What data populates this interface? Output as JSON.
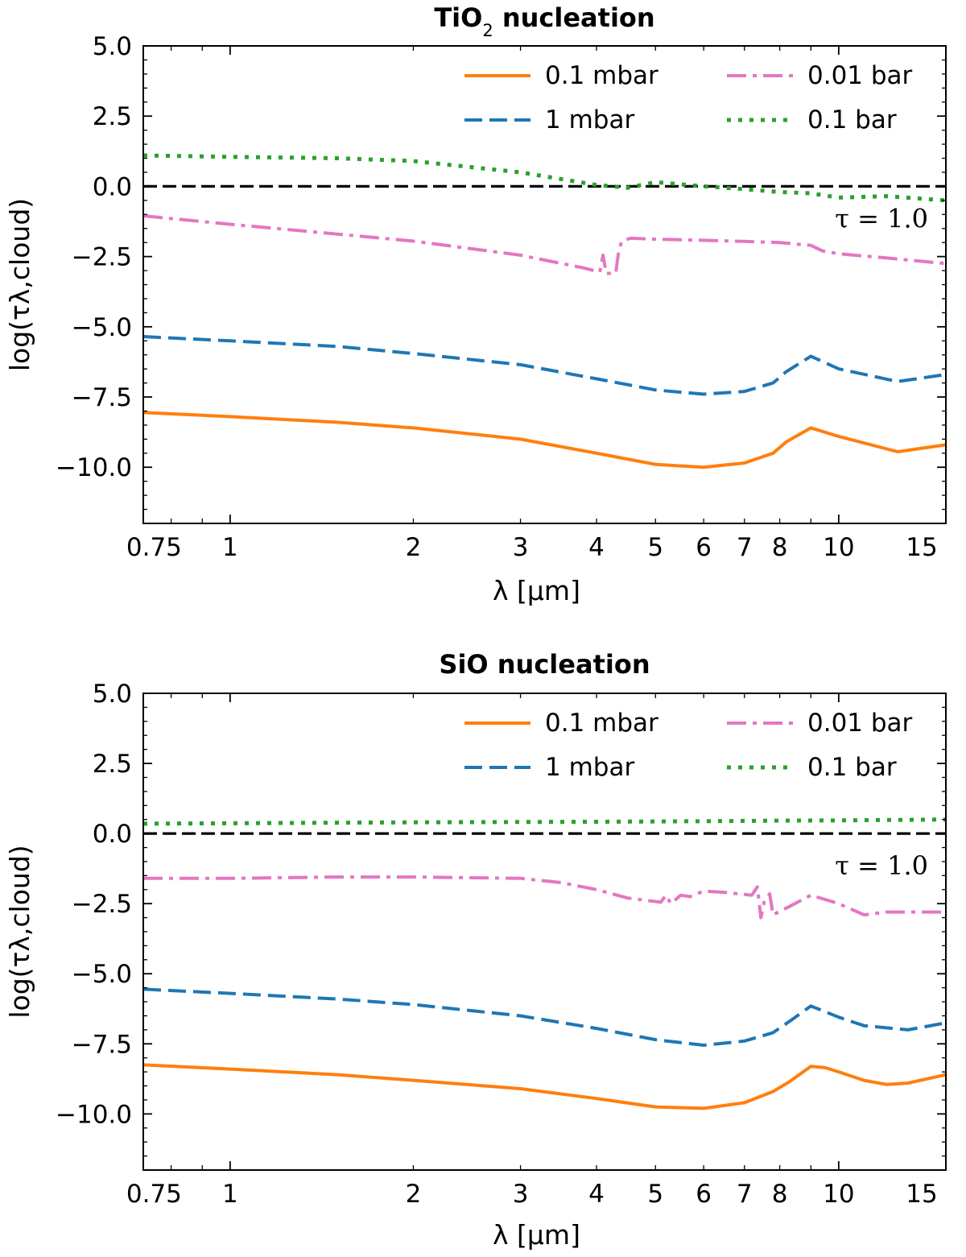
{
  "chart_data": [
    {
      "type": "line",
      "title_main": "TiO",
      "title_sub": "2",
      "title_rest": " nucleation",
      "xlabel": "λ [μm]",
      "ylabel": "log(τλ,cloud)",
      "xscale": "log",
      "xlim": [
        0.72,
        15
      ],
      "ylim": [
        -12,
        5
      ],
      "xticks": [
        0.75,
        1,
        2,
        3,
        4,
        5,
        6,
        7,
        8,
        10,
        15
      ],
      "xtick_labels": [
        "0.75",
        "1",
        "2",
        "3",
        "4",
        "5",
        "6",
        "7",
        "8",
        "10",
        "15"
      ],
      "yticks": [
        5,
        2.5,
        0,
        -2.5,
        -5,
        -7.5,
        -10
      ],
      "ytick_labels": [
        "5.0",
        "2.5",
        "0.0",
        "−2.5",
        "−5.0",
        "−7.5",
        "−10.0"
      ],
      "reference_line": {
        "y": 0,
        "label": "τ = 1.0",
        "color": "#000000"
      },
      "legend_position": "top-right",
      "series": [
        {
          "name": "0.1 mbar",
          "style": "solid",
          "color": "#ff7f0e",
          "x": [
            0.72,
            1,
            1.5,
            2,
            3,
            4,
            5,
            6,
            7,
            7.8,
            8.2,
            9,
            10,
            12.5,
            15
          ],
          "y": [
            -8.05,
            -8.2,
            -8.4,
            -8.6,
            -9.0,
            -9.5,
            -9.9,
            -10.0,
            -9.85,
            -9.5,
            -9.1,
            -8.6,
            -8.9,
            -9.45,
            -9.2
          ]
        },
        {
          "name": "1 mbar",
          "style": "dashed",
          "color": "#1f77b4",
          "x": [
            0.72,
            1,
            1.5,
            2,
            3,
            4,
            5,
            6,
            7,
            7.8,
            8.2,
            9,
            10,
            12.5,
            15
          ],
          "y": [
            -5.35,
            -5.5,
            -5.7,
            -5.95,
            -6.35,
            -6.85,
            -7.25,
            -7.4,
            -7.3,
            -7.0,
            -6.6,
            -6.05,
            -6.5,
            -6.95,
            -6.7
          ]
        },
        {
          "name": "0.01 bar",
          "style": "dashdot",
          "color": "#e377c2",
          "x": [
            0.72,
            1,
            1.5,
            2,
            3,
            3.8,
            4.05,
            4.1,
            4.15,
            4.3,
            4.35,
            4.4,
            4.55,
            5,
            6,
            7,
            8,
            9,
            9.4,
            10,
            12,
            15
          ],
          "y": [
            -1.05,
            -1.35,
            -1.7,
            -1.95,
            -2.45,
            -2.9,
            -3.05,
            -2.45,
            -3.1,
            -3.1,
            -2.3,
            -1.95,
            -1.85,
            -1.88,
            -1.92,
            -1.96,
            -2.0,
            -2.1,
            -2.3,
            -2.4,
            -2.55,
            -2.75
          ]
        },
        {
          "name": "0.1 bar",
          "style": "dotted",
          "color": "#2ca02c",
          "x": [
            0.72,
            1,
            1.5,
            2,
            3,
            4,
            4.5,
            5,
            6,
            7,
            8,
            9,
            10,
            12,
            15
          ],
          "y": [
            1.1,
            1.05,
            1.0,
            0.9,
            0.5,
            0.05,
            -0.05,
            0.15,
            0.0,
            -0.1,
            -0.2,
            -0.25,
            -0.4,
            -0.35,
            -0.5
          ]
        }
      ]
    },
    {
      "type": "line",
      "title_main": "SiO nucleation",
      "title_sub": "",
      "title_rest": "",
      "xlabel": "λ [μm]",
      "ylabel": "log(τλ,cloud)",
      "xscale": "log",
      "xlim": [
        0.72,
        15
      ],
      "ylim": [
        -12,
        5
      ],
      "xticks": [
        0.75,
        1,
        2,
        3,
        4,
        5,
        6,
        7,
        8,
        10,
        15
      ],
      "xtick_labels": [
        "0.75",
        "1",
        "2",
        "3",
        "4",
        "5",
        "6",
        "7",
        "8",
        "10",
        "15"
      ],
      "yticks": [
        5,
        2.5,
        0,
        -2.5,
        -5,
        -7.5,
        -10
      ],
      "ytick_labels": [
        "5.0",
        "2.5",
        "0.0",
        "−2.5",
        "−5.0",
        "−7.5",
        "−10.0"
      ],
      "reference_line": {
        "y": 0,
        "label": "τ = 1.0",
        "color": "#000000"
      },
      "legend_position": "top-right",
      "series": [
        {
          "name": "0.1 mbar",
          "style": "solid",
          "color": "#ff7f0e",
          "x": [
            0.72,
            1,
            1.5,
            2,
            3,
            4,
            5,
            6,
            7,
            7.8,
            8.3,
            9,
            9.5,
            10,
            11,
            12,
            13,
            15
          ],
          "y": [
            -8.25,
            -8.4,
            -8.6,
            -8.8,
            -9.1,
            -9.45,
            -9.75,
            -9.8,
            -9.6,
            -9.2,
            -8.85,
            -8.3,
            -8.35,
            -8.5,
            -8.8,
            -8.95,
            -8.9,
            -8.6
          ]
        },
        {
          "name": "1 mbar",
          "style": "dashed",
          "color": "#1f77b4",
          "x": [
            0.72,
            1,
            1.5,
            2,
            3,
            4,
            5,
            6,
            7,
            7.8,
            8.3,
            9,
            10,
            11,
            13,
            15
          ],
          "y": [
            -5.55,
            -5.7,
            -5.9,
            -6.1,
            -6.5,
            -6.95,
            -7.35,
            -7.55,
            -7.4,
            -7.1,
            -6.7,
            -6.15,
            -6.55,
            -6.85,
            -7.0,
            -6.75
          ]
        },
        {
          "name": "0.01 bar",
          "style": "dashdot",
          "color": "#e377c2",
          "x": [
            0.72,
            1,
            1.5,
            2,
            3,
            3.5,
            4,
            4.5,
            5.1,
            5.2,
            5.3,
            5.5,
            5.7,
            6,
            6.5,
            7.2,
            7.35,
            7.45,
            7.55,
            7.7,
            7.8,
            8.3,
            9,
            10,
            11,
            12,
            15
          ],
          "y": [
            -1.6,
            -1.6,
            -1.55,
            -1.55,
            -1.6,
            -1.75,
            -2.0,
            -2.3,
            -2.45,
            -2.2,
            -2.5,
            -2.2,
            -2.25,
            -2.05,
            -2.1,
            -2.2,
            -1.9,
            -3.0,
            -2.4,
            -2.15,
            -2.9,
            -2.6,
            -2.2,
            -2.5,
            -2.9,
            -2.8,
            -2.8
          ]
        },
        {
          "name": "0.1 bar",
          "style": "dotted",
          "color": "#2ca02c",
          "x": [
            0.72,
            2,
            4,
            6,
            8,
            10,
            15
          ],
          "y": [
            0.35,
            0.4,
            0.42,
            0.44,
            0.46,
            0.47,
            0.5
          ]
        }
      ]
    }
  ]
}
